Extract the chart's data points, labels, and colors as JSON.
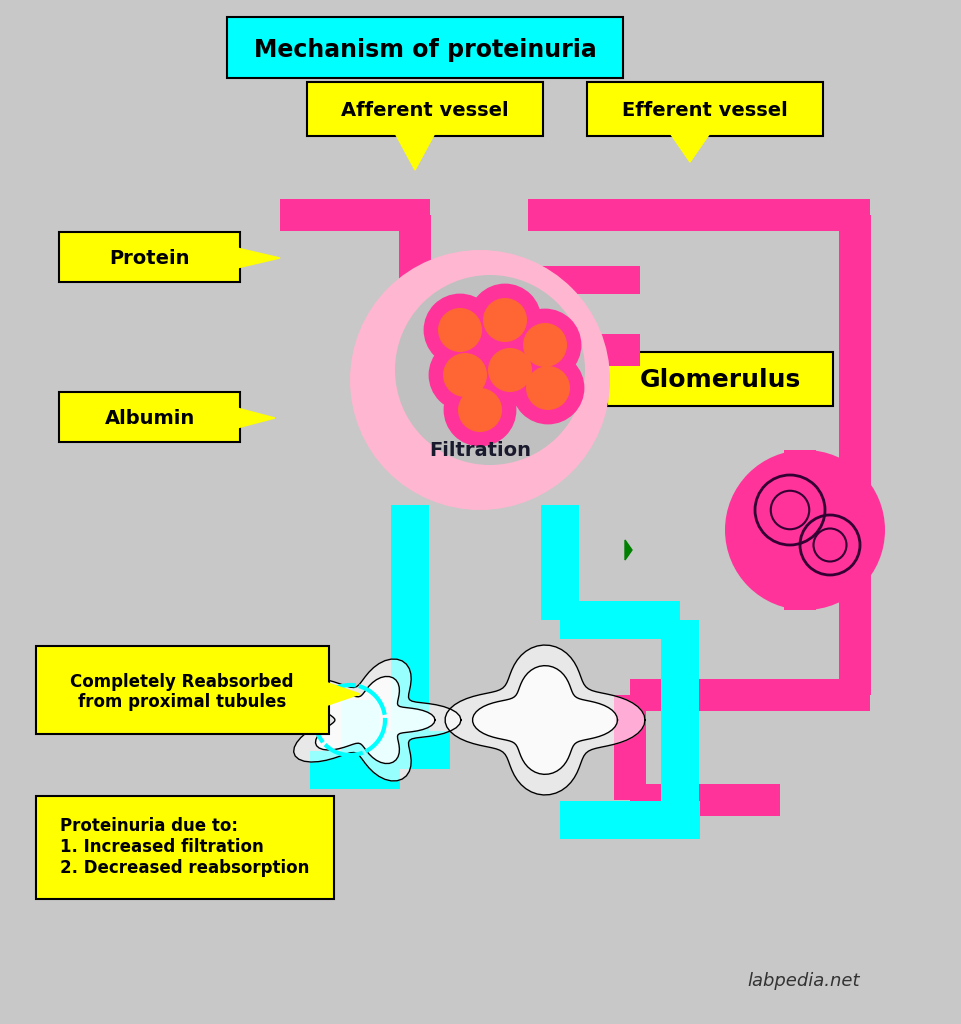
{
  "bg_color": "#c8c8c8",
  "pink": "#FF3399",
  "light_pink": "#FFB6D0",
  "cyan": "#00FFFF",
  "yellow": "#FFFF00",
  "orange_red": "#FF6633",
  "dark_magenta": "#CC0066",
  "title": "Mechanism of proteinuria",
  "title_bg": "#00FFFF",
  "label_afferent": "Afferent vessel",
  "label_efferent": "Efferent vessel",
  "label_protein": "Protein",
  "label_albumin": "Albumin",
  "label_glomerulus": "Glomerulus",
  "label_filtration": "Filtration",
  "label_reabsorbed": "Completely Reabsorbed\nfrom proximal tubules",
  "label_proteinuria": "Proteinuria due to:\n1. Increased filtration\n2. Decreased reabsorption",
  "watermark": "labpedia.net"
}
